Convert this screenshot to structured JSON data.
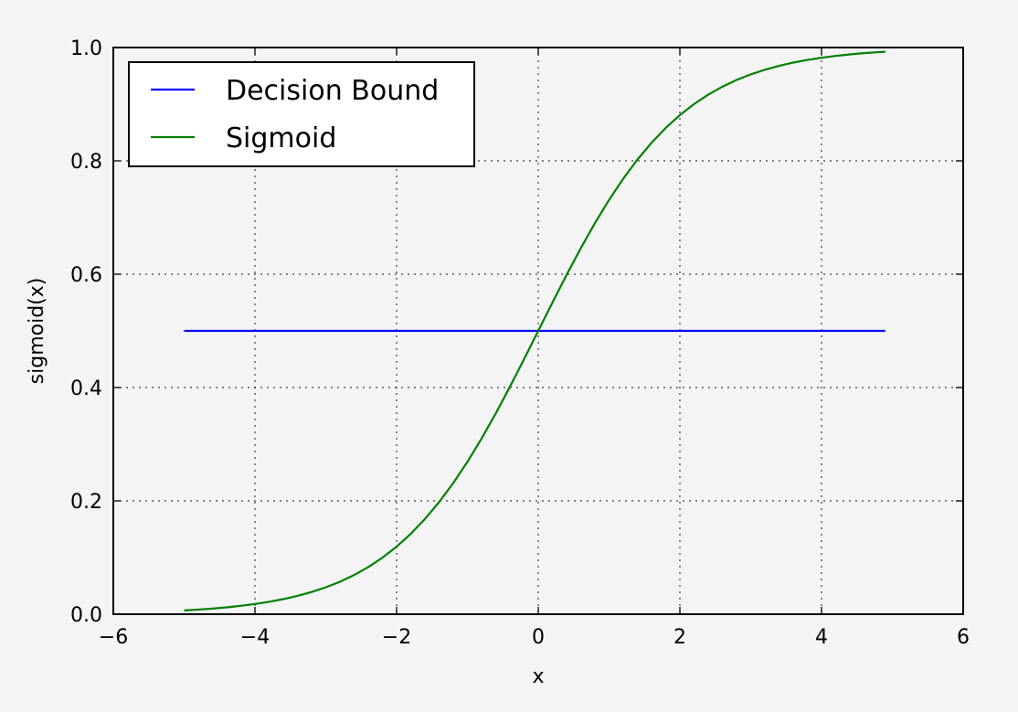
{
  "chart_data": {
    "type": "line",
    "title": "",
    "xlabel": "x",
    "ylabel": "sigmoid(x)",
    "xlim": [
      -6,
      6
    ],
    "ylim": [
      0.0,
      1.0
    ],
    "x_ticks": [
      -6,
      -4,
      -2,
      0,
      2,
      4,
      6
    ],
    "x_tick_labels": [
      "−6",
      "−4",
      "−2",
      "0",
      "2",
      "4",
      "6"
    ],
    "y_ticks": [
      0.0,
      0.2,
      0.4,
      0.6,
      0.8,
      1.0
    ],
    "y_tick_labels": [
      "0.0",
      "0.2",
      "0.4",
      "0.6",
      "0.8",
      "1.0"
    ],
    "grid": true,
    "legend_position": "top-left",
    "series": [
      {
        "name": "Decision Bound",
        "color": "#0000ff",
        "x": [
          -5.0,
          4.9
        ],
        "y": [
          0.5,
          0.5
        ]
      },
      {
        "name": "Sigmoid",
        "color": "#008000",
        "x": [
          -5.0,
          -4.8,
          -4.6,
          -4.4,
          -4.2,
          -4.0,
          -3.8,
          -3.6,
          -3.4,
          -3.2,
          -3.0,
          -2.8,
          -2.6,
          -2.4,
          -2.2,
          -2.0,
          -1.8,
          -1.6,
          -1.4,
          -1.2,
          -1.0,
          -0.8,
          -0.6,
          -0.4,
          -0.2,
          0.0,
          0.2,
          0.4,
          0.6,
          0.8,
          1.0,
          1.2,
          1.4,
          1.6,
          1.8,
          2.0,
          2.2,
          2.4,
          2.6,
          2.8,
          3.0,
          3.2,
          3.4,
          3.6,
          3.8,
          4.0,
          4.2,
          4.4,
          4.6,
          4.8,
          4.9
        ],
        "y": [
          0.0067,
          0.0082,
          0.0099,
          0.0121,
          0.0148,
          0.018,
          0.0219,
          0.0266,
          0.0323,
          0.0392,
          0.0474,
          0.0573,
          0.0691,
          0.0832,
          0.0998,
          0.1192,
          0.1419,
          0.168,
          0.1978,
          0.2315,
          0.2689,
          0.31,
          0.3543,
          0.4013,
          0.4502,
          0.5,
          0.5498,
          0.5987,
          0.6457,
          0.69,
          0.7311,
          0.7685,
          0.8022,
          0.832,
          0.8581,
          0.8808,
          0.9002,
          0.9168,
          0.9309,
          0.9427,
          0.9526,
          0.9608,
          0.9677,
          0.9734,
          0.9781,
          0.982,
          0.9852,
          0.9879,
          0.9901,
          0.9918,
          0.9926
        ]
      }
    ]
  }
}
